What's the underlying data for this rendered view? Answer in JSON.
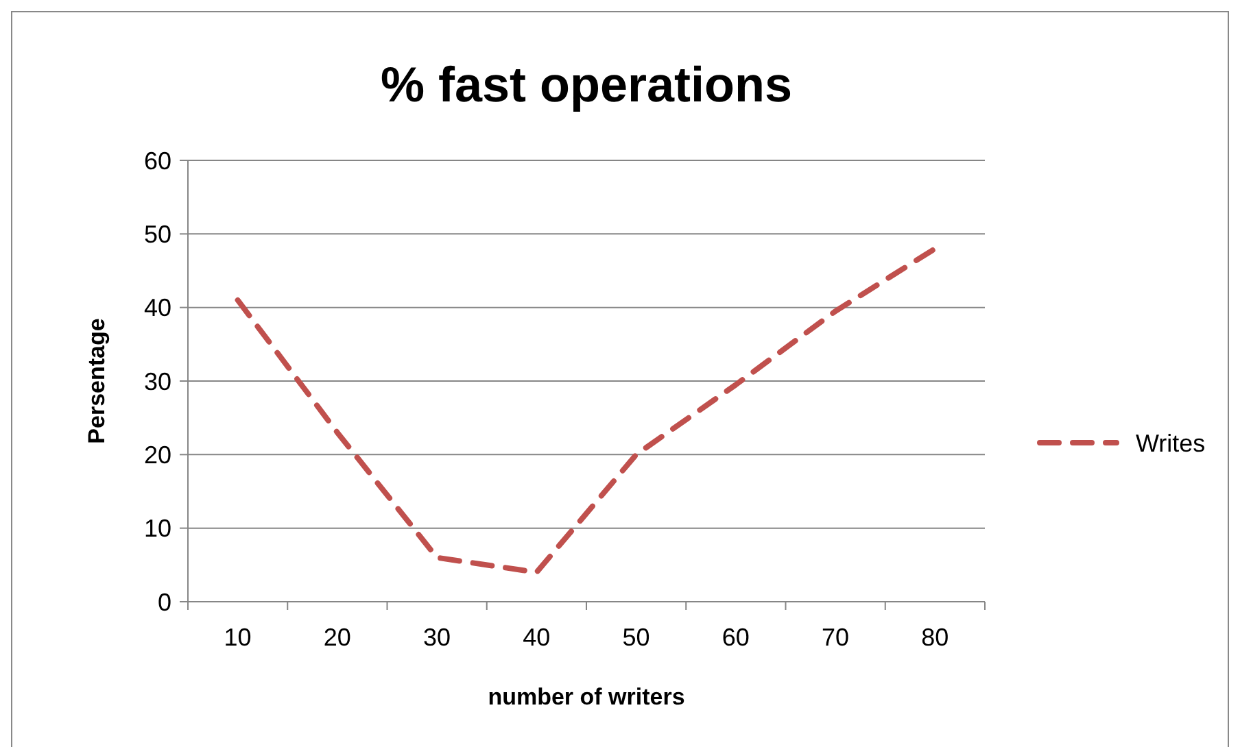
{
  "chart_data": {
    "type": "line",
    "title": "% fast operations",
    "xlabel": "number of writers",
    "ylabel": "Persentage",
    "categories": [
      "10",
      "20",
      "30",
      "40",
      "50",
      "60",
      "70",
      "80"
    ],
    "series": [
      {
        "name": "Writes",
        "color": "#c0504d",
        "values": [
          41,
          23,
          6,
          4,
          20,
          29.5,
          39.5,
          48
        ]
      }
    ],
    "ylim": [
      0,
      60
    ],
    "yticks": [
      0,
      10,
      20,
      30,
      40,
      50,
      60
    ],
    "grid": "y",
    "legend": "right",
    "line_style": "dashed",
    "marker": "none"
  }
}
